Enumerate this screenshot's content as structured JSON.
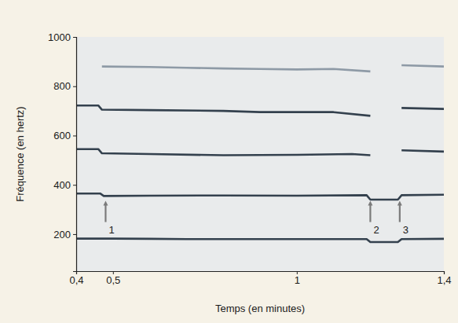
{
  "chart_data": {
    "type": "line",
    "x_label": "Temps (en minutes)",
    "y_label": "Fréquence (en hertz)",
    "xlim": [
      0.4,
      1.4
    ],
    "ylim": [
      50,
      1000
    ],
    "xticks": [
      {
        "value": 0.4,
        "label": "0,4"
      },
      {
        "value": 0.5,
        "label": "0,5"
      },
      1,
      {
        "value": 1.4,
        "label": "1,4"
      }
    ],
    "yticks": [
      200,
      400,
      600,
      800,
      1000
    ],
    "grid": false,
    "series": [
      {
        "color": "#34414e",
        "x": [
          0.4,
          0.5,
          0.6,
          0.7,
          0.8,
          0.9,
          1.0,
          1.1,
          1.19,
          1.2,
          1.275,
          1.285,
          1.4
        ],
        "values": [
          182,
          182,
          181,
          180,
          180,
          180,
          180,
          180,
          180,
          168,
          168,
          180,
          181
        ]
      },
      {
        "color": "#34414e",
        "x": [
          0.4,
          0.465,
          0.475,
          0.6,
          0.8,
          1.0,
          1.19,
          1.2,
          1.275,
          1.285,
          1.4
        ],
        "values": [
          365,
          365,
          355,
          356,
          357,
          356,
          358,
          340,
          340,
          358,
          360
        ]
      },
      {
        "color": "#34414e",
        "x": [
          0.4,
          0.46,
          0.47,
          0.6,
          0.8,
          1.0,
          1.15,
          1.2,
          1.24,
          1.285,
          1.4
        ],
        "values": [
          545,
          545,
          528,
          525,
          520,
          522,
          525,
          520,
          null,
          540,
          535
        ]
      },
      {
        "color": "#34414e",
        "x": [
          0.4,
          0.46,
          0.47,
          0.6,
          0.8,
          0.9,
          1.0,
          1.1,
          1.2,
          1.24,
          1.285,
          1.4
        ],
        "values": [
          722,
          722,
          705,
          703,
          700,
          695,
          695,
          695,
          680,
          null,
          712,
          708
        ]
      },
      {
        "color": "#8e9aa6",
        "x": [
          0.47,
          0.6,
          0.7,
          0.8,
          0.9,
          1.0,
          1.1,
          1.2,
          1.24,
          1.285,
          1.4
        ],
        "values": [
          880,
          878,
          875,
          872,
          870,
          868,
          870,
          860,
          null,
          885,
          880
        ]
      }
    ],
    "annotations": [
      {
        "text": "1",
        "x": 0.48,
        "y": 230
      },
      {
        "text": "2",
        "x": 1.2,
        "y": 230
      },
      {
        "text": "3",
        "x": 1.28,
        "y": 230
      }
    ]
  }
}
